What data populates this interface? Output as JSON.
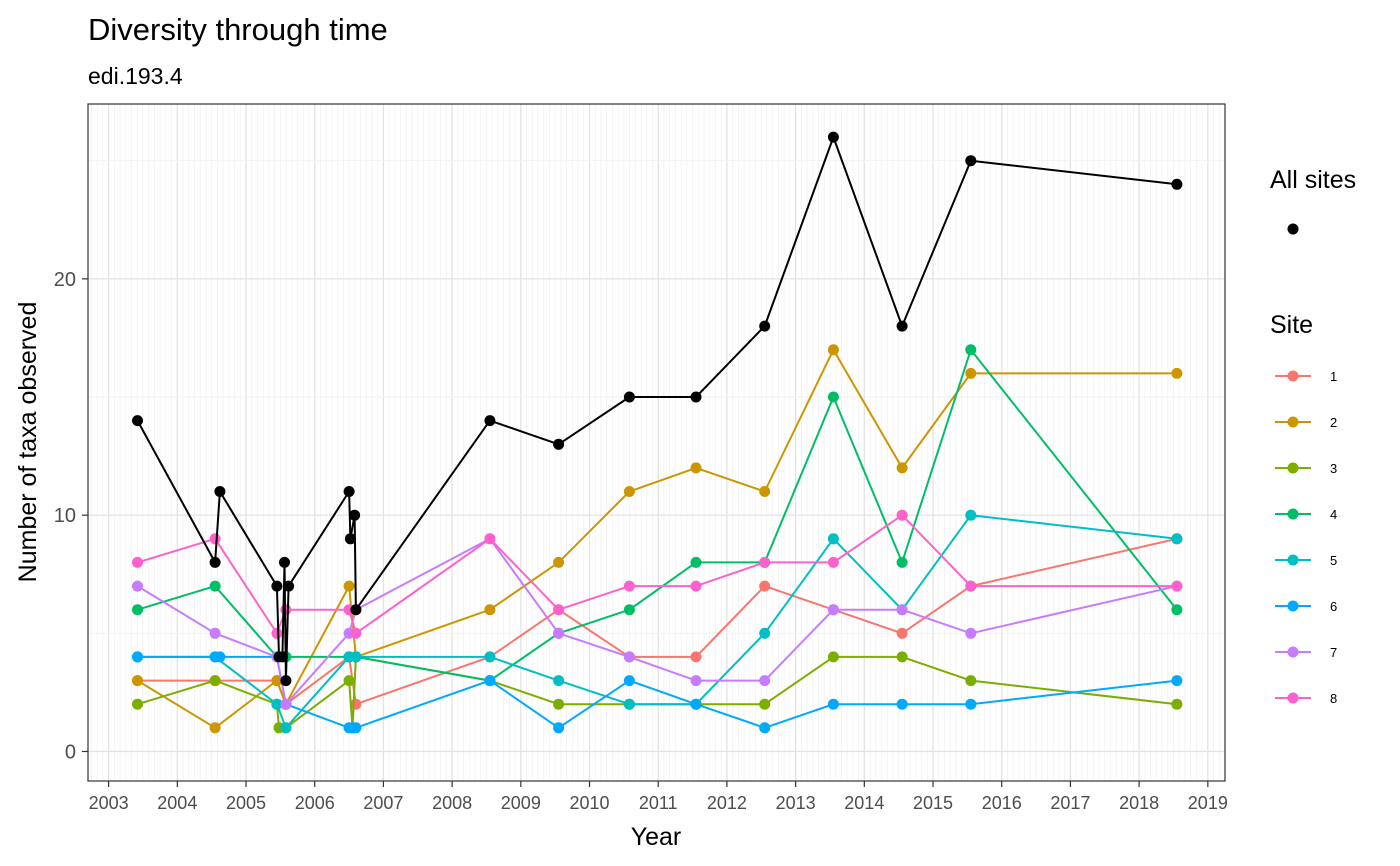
{
  "chart_data": {
    "type": "line",
    "title": "Diversity through time",
    "subtitle": "edi.193.4",
    "xlabel": "Year",
    "ylabel": "Number of taxa observed",
    "xlim": [
      2002.7,
      2019.25
    ],
    "ylim": [
      -1.25,
      27.4
    ],
    "x_ticks": [
      "2003",
      "2004",
      "2005",
      "2006",
      "2007",
      "2008",
      "2009",
      "2010",
      "2011",
      "2012",
      "2013",
      "2014",
      "2015",
      "2016",
      "2017",
      "2018",
      "2019"
    ],
    "y_ticks": [
      0,
      10,
      20
    ],
    "grid": true,
    "legend_position": "right",
    "legend_all_title": "All sites",
    "legend_site_title": "Site",
    "all_sites": {
      "color": "#000000",
      "x": [
        2003.42,
        2004.55,
        2004.62,
        2005.45,
        2005.48,
        2005.53,
        2005.56,
        2005.58,
        2005.62,
        2006.5,
        2006.52,
        2006.58,
        2006.6,
        2008.55,
        2009.55,
        2010.58,
        2011.55,
        2012.55,
        2013.55,
        2014.55,
        2015.55,
        2018.55
      ],
      "y": [
        14,
        8,
        11,
        7,
        4,
        4,
        8,
        3,
        7,
        11,
        9,
        10,
        6,
        14,
        13,
        15,
        15,
        18,
        26,
        18,
        25,
        24
      ]
    },
    "series": [
      {
        "name": "1",
        "color": "#F8766D",
        "x": [
          2003.42,
          2004.55,
          2005.45,
          2005.58,
          2006.5,
          2006.6,
          2008.55,
          2009.55,
          2010.58,
          2011.55,
          2012.55,
          2013.55,
          2014.55,
          2015.55,
          2018.55
        ],
        "y": [
          3,
          3,
          3,
          2,
          4,
          2,
          4,
          6,
          4,
          4,
          7,
          6,
          5,
          7,
          9
        ]
      },
      {
        "name": "2",
        "color": "#CD9600",
        "x": [
          2003.42,
          2004.55,
          2005.45,
          2005.58,
          2006.5,
          2006.6,
          2008.55,
          2009.55,
          2010.58,
          2011.55,
          2012.55,
          2013.55,
          2014.55,
          2015.55,
          2018.55
        ],
        "y": [
          3,
          1,
          3,
          2,
          7,
          4,
          6,
          8,
          11,
          12,
          11,
          17,
          12,
          16,
          16
        ]
      },
      {
        "name": "3",
        "color": "#7CAE00",
        "x": [
          2003.42,
          2004.55,
          2005.45,
          2005.48,
          2005.58,
          2006.5,
          2006.55,
          2006.6,
          2008.55,
          2009.55,
          2010.58,
          2011.55,
          2012.55,
          2013.55,
          2014.55,
          2015.55,
          2018.55
        ],
        "y": [
          2,
          3,
          2,
          1,
          1,
          3,
          1,
          4,
          3,
          2,
          2,
          2,
          2,
          4,
          4,
          3,
          2
        ]
      },
      {
        "name": "4",
        "color": "#00BE67",
        "x": [
          2003.42,
          2004.55,
          2005.45,
          2005.58,
          2006.5,
          2006.6,
          2008.55,
          2009.55,
          2010.58,
          2011.55,
          2012.55,
          2013.55,
          2014.55,
          2015.55,
          2018.55
        ],
        "y": [
          6,
          7,
          4,
          4,
          4,
          4,
          3,
          5,
          6,
          8,
          8,
          15,
          8,
          17,
          6
        ]
      },
      {
        "name": "5",
        "color": "#00BFC4",
        "x": [
          2003.42,
          2004.55,
          2005.45,
          2005.58,
          2006.5,
          2006.6,
          2008.55,
          2009.55,
          2010.58,
          2011.55,
          2012.55,
          2013.55,
          2014.55,
          2015.55,
          2018.55
        ],
        "y": [
          4,
          4,
          2,
          1,
          4,
          4,
          4,
          3,
          2,
          2,
          5,
          9,
          6,
          10,
          9
        ]
      },
      {
        "name": "6",
        "color": "#00A9FF",
        "x": [
          2003.42,
          2004.55,
          2004.62,
          2005.45,
          2005.58,
          2006.5,
          2006.55,
          2006.6,
          2008.55,
          2009.55,
          2010.58,
          2011.55,
          2012.55,
          2013.55,
          2014.55,
          2015.55,
          2018.55
        ],
        "y": [
          4,
          4,
          4,
          4,
          2,
          1,
          1,
          1,
          3,
          1,
          3,
          2,
          1,
          2,
          2,
          2,
          3
        ]
      },
      {
        "name": "7",
        "color": "#C77CFF",
        "x": [
          2003.42,
          2004.55,
          2005.45,
          2005.58,
          2006.5,
          2006.6,
          2008.55,
          2009.55,
          2010.58,
          2011.55,
          2012.55,
          2013.55,
          2014.55,
          2015.55,
          2018.55
        ],
        "y": [
          7,
          5,
          4,
          2,
          5,
          6,
          9,
          5,
          4,
          3,
          3,
          6,
          6,
          5,
          7
        ]
      },
      {
        "name": "8",
        "color": "#FF61CC",
        "x": [
          2003.42,
          2004.55,
          2005.45,
          2005.58,
          2006.5,
          2006.6,
          2008.55,
          2009.55,
          2010.58,
          2011.55,
          2012.55,
          2013.55,
          2014.55,
          2015.55,
          2018.55
        ],
        "y": [
          8,
          9,
          5,
          6,
          6,
          5,
          9,
          6,
          7,
          7,
          8,
          8,
          10,
          7,
          7
        ]
      }
    ]
  }
}
